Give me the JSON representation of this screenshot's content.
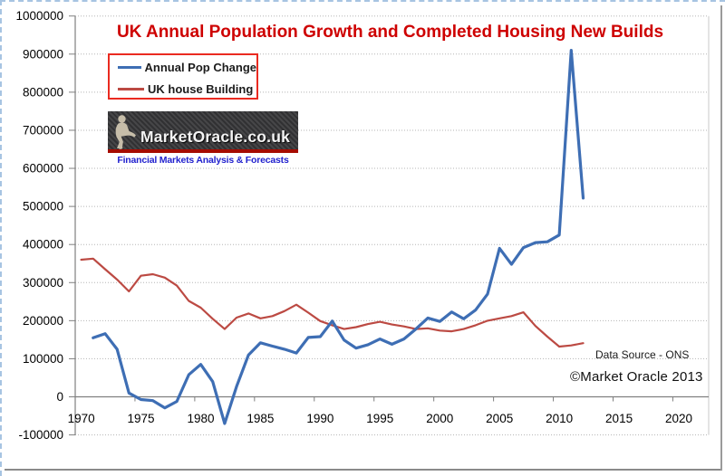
{
  "title": "UK  Annual Population Growth and Completed Housing New Builds",
  "legend": {
    "items": [
      {
        "label": "Annual Pop Change",
        "color": "#3E6EB4",
        "thickness": 3.5
      },
      {
        "label": "UK house Building",
        "color": "#BC4A43",
        "thickness": 2.5
      }
    ]
  },
  "logo": {
    "brand": "MarketOracle.co.uk",
    "tagline": "Financial Markets Analysis & Forecasts"
  },
  "annotations": {
    "data_source": "Data Source - ONS",
    "copyright": "©Market Oracle 2013"
  },
  "chart_data": {
    "type": "line",
    "title": "UK  Annual Population Growth and Completed Housing New Builds",
    "title_color": "#CE0000",
    "xlabel": "",
    "ylabel": "",
    "ylim": [
      -100000,
      1000000
    ],
    "y_tick_step": 100000,
    "x_ticks": [
      1970,
      1975,
      1980,
      1985,
      1990,
      1995,
      2000,
      2005,
      2010,
      2015,
      2020
    ],
    "x_category_range": [
      1970,
      2022
    ],
    "grid": "horizontal-dotted",
    "legend_position": "top-left",
    "series": [
      {
        "name": "UK house Building",
        "color": "#BC4A43",
        "stroke_width": 2.2,
        "start_year": 1970,
        "values": [
          360000,
          363000,
          335000,
          308000,
          277000,
          318000,
          322000,
          313000,
          292000,
          252000,
          234000,
          205000,
          178000,
          208000,
          219000,
          206000,
          212000,
          225000,
          242000,
          221000,
          199000,
          188000,
          178000,
          183000,
          191000,
          197000,
          190000,
          185000,
          178000,
          180000,
          174000,
          172000,
          178000,
          188000,
          200000,
          206000,
          212000,
          222000,
          186000,
          158000,
          132000,
          135000,
          141000
        ]
      },
      {
        "name": "Annual Pop Change",
        "color": "#3E6EB4",
        "stroke_width": 3.2,
        "start_year": 1971,
        "values": [
          155000,
          166000,
          125000,
          10000,
          -7000,
          -10000,
          -29000,
          -12000,
          58000,
          85000,
          40000,
          -70000,
          27000,
          110000,
          142000,
          133000,
          125000,
          115000,
          156000,
          158000,
          199000,
          149000,
          128000,
          137000,
          152000,
          138000,
          152000,
          178000,
          207000,
          198000,
          223000,
          205000,
          228000,
          270000,
          390000,
          348000,
          392000,
          405000,
          407000,
          425000,
          910000,
          522000
        ]
      }
    ]
  }
}
